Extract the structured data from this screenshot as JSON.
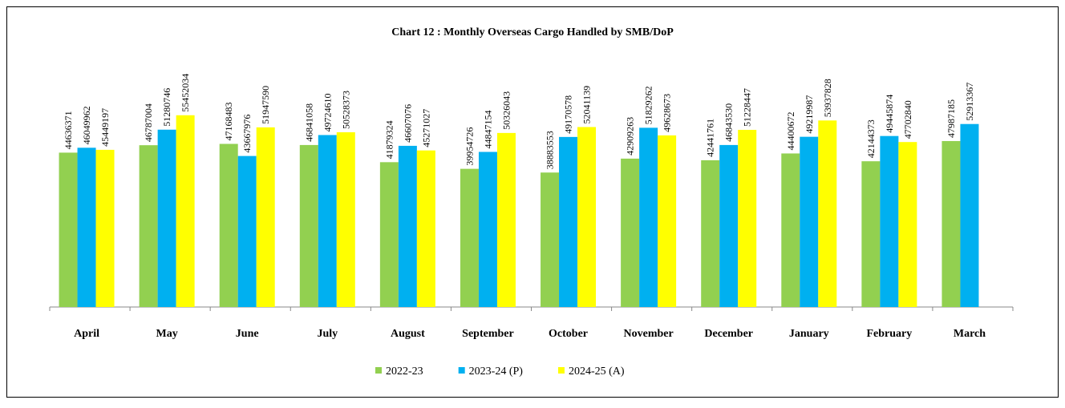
{
  "chart_data": {
    "type": "bar",
    "title": "Chart 12 : Monthly Overseas Cargo Handled by SMB/DoP",
    "categories": [
      "April",
      "May",
      "June",
      "July",
      "August",
      "September",
      "October",
      "November",
      "December",
      "January",
      "February",
      "March"
    ],
    "series": [
      {
        "name": "2022-23",
        "color": "#92d050",
        "values": [
          44636371,
          46787004,
          47168483,
          46841058,
          41879324,
          39954726,
          38883553,
          42909263,
          42441761,
          44400672,
          42144373,
          47987185
        ]
      },
      {
        "name": "2023-24 (P)",
        "color": "#00b0f0",
        "values": [
          46049962,
          51280746,
          43667976,
          49724610,
          46607076,
          44847154,
          49170578,
          51829262,
          46843530,
          49219987,
          49445874,
          52913367
        ]
      },
      {
        "name": "2024-25 (A)",
        "color": "#ffff00",
        "values": [
          45449197,
          55452034,
          51947590,
          50528373,
          45271027,
          50326043,
          52041139,
          49628673,
          51228447,
          53937828,
          47702840,
          null
        ]
      }
    ],
    "ylim": [
      0,
      70000000
    ]
  }
}
